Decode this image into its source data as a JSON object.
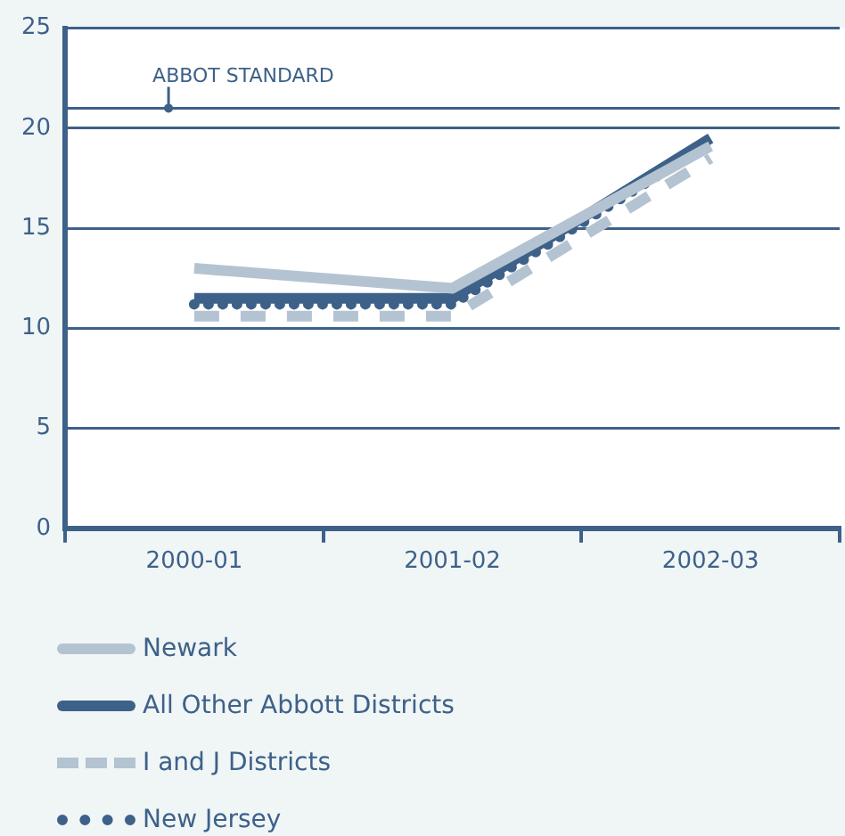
{
  "chart_data": {
    "type": "line",
    "categories": [
      "2000-01",
      "2001-02",
      "2002-03"
    ],
    "series": [
      {
        "name": "Newark",
        "color": "#b4c3d1",
        "line_style": "solid",
        "values": [
          13,
          12,
          19.1
        ]
      },
      {
        "name": "All Other Abbott Districts",
        "color": "#3d6189",
        "line_style": "solid",
        "values": [
          11.5,
          11.5,
          19.5
        ]
      },
      {
        "name": "I and J Districts",
        "color": "#b4c3d1",
        "line_style": "dashed",
        "values": [
          10.6,
          10.6,
          18.5
        ]
      },
      {
        "name": "New Jersey",
        "color": "#3d6189",
        "line_style": "dotted",
        "values": [
          11.2,
          11.2,
          19.3
        ]
      }
    ],
    "ylim": [
      0,
      25
    ],
    "yticks": [
      0,
      5,
      10,
      15,
      20,
      25
    ],
    "grid": "y",
    "legend": "bottom",
    "marker": "none",
    "ref_lines": [
      {
        "axis": "y",
        "value": 21,
        "label": "ABBOT STANDARD",
        "color": "#3d6189"
      }
    ]
  }
}
